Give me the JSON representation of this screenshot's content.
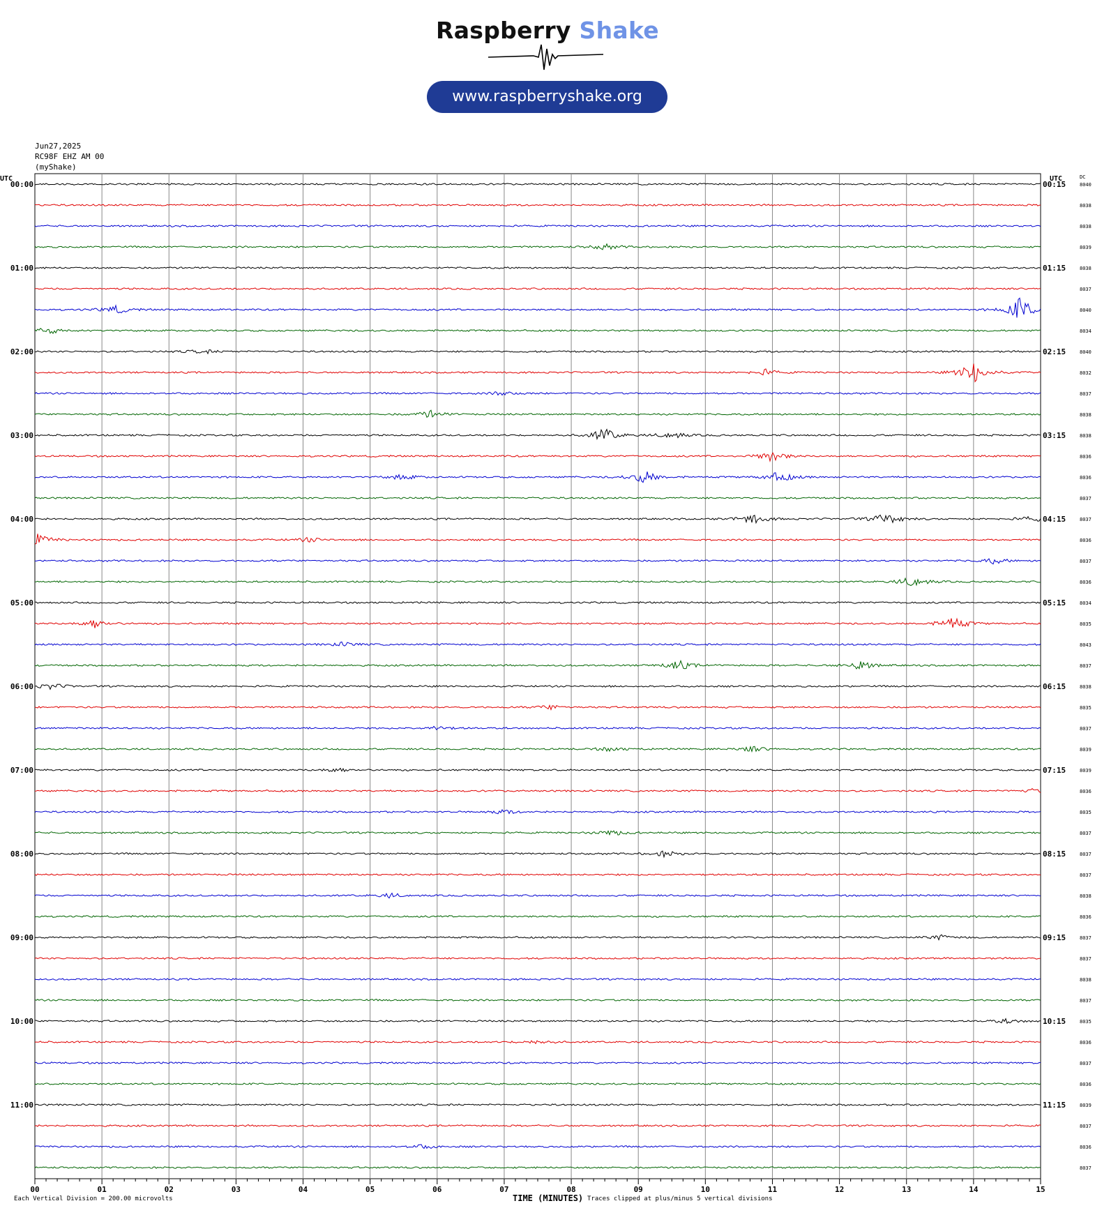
{
  "header": {
    "brand_word1": "Raspberry",
    "brand_word2": "Shake",
    "url": "www.raspberryshake.org"
  },
  "meta": {
    "date": "Jun27,2025",
    "station": "RC98F EHZ AM 00",
    "network": "(myShake)"
  },
  "footer": {
    "scale": "Each Vertical Division =  200.00 microvolts",
    "clip": "Traces clipped at plus/minus 5 vertical divisions"
  },
  "chart_data": {
    "type": "line",
    "title": "",
    "xlabel": "TIME (MINUTES)",
    "ylabel_left": "UTC",
    "ylabel_right": "UTC",
    "dc_label": "DC",
    "x_range": [
      0,
      15
    ],
    "x_ticks": [
      "00",
      "01",
      "02",
      "03",
      "04",
      "05",
      "06",
      "07",
      "08",
      "09",
      "10",
      "11",
      "12",
      "13",
      "14",
      "15"
    ],
    "grid": true,
    "trace_colors": [
      "#000000",
      "#e00000",
      "#0000d0",
      "#006400"
    ],
    "hour_labels_left": [
      "00:00",
      "01:00",
      "02:00",
      "03:00",
      "04:00",
      "05:00",
      "06:00",
      "07:00",
      "08:00",
      "09:00",
      "10:00",
      "11:00"
    ],
    "hour_labels_right": [
      "00:15",
      "01:15",
      "02:15",
      "03:15",
      "04:15",
      "05:15",
      "06:15",
      "07:15",
      "08:15",
      "09:15",
      "10:15",
      "11:15"
    ],
    "dc_values": [
      8040,
      8038,
      8038,
      8039,
      8038,
      8037,
      8040,
      8034,
      8040,
      8032,
      8037,
      8038,
      8038,
      8036,
      8036,
      8037,
      8037,
      8036,
      8037,
      8036,
      8034,
      8035,
      8043,
      8037,
      8038,
      8035,
      8037,
      8039,
      8039,
      8036,
      8035,
      8037,
      8037,
      8037,
      8038,
      8036,
      8037,
      8037,
      8038,
      8037,
      8035,
      8036,
      8037,
      8036,
      8039,
      8037,
      8036,
      8037
    ],
    "events": [
      {
        "trace": 3,
        "minute": 8.5,
        "amp": 4
      },
      {
        "trace": 6,
        "minute": 1.2,
        "amp": 6
      },
      {
        "trace": 6,
        "minute": 14.7,
        "amp": 18
      },
      {
        "trace": 7,
        "minute": 0.2,
        "amp": 5
      },
      {
        "trace": 8,
        "minute": 2.5,
        "amp": 3
      },
      {
        "trace": 9,
        "minute": 10.9,
        "amp": 4
      },
      {
        "trace": 9,
        "minute": 14.0,
        "amp": 16
      },
      {
        "trace": 10,
        "minute": 7.0,
        "amp": 3
      },
      {
        "trace": 11,
        "minute": 5.9,
        "amp": 5
      },
      {
        "trace": 12,
        "minute": 8.5,
        "amp": 10
      },
      {
        "trace": 12,
        "minute": 9.5,
        "amp": 5
      },
      {
        "trace": 13,
        "minute": 11.0,
        "amp": 8
      },
      {
        "trace": 14,
        "minute": 5.5,
        "amp": 4
      },
      {
        "trace": 14,
        "minute": 9.1,
        "amp": 9
      },
      {
        "trace": 14,
        "minute": 11.1,
        "amp": 8
      },
      {
        "trace": 16,
        "minute": 10.7,
        "amp": 8
      },
      {
        "trace": 16,
        "minute": 12.7,
        "amp": 9
      },
      {
        "trace": 16,
        "minute": 14.9,
        "amp": 4
      },
      {
        "trace": 17,
        "minute": 0.05,
        "amp": 8
      },
      {
        "trace": 17,
        "minute": 4.1,
        "amp": 3
      },
      {
        "trace": 18,
        "minute": 14.3,
        "amp": 4
      },
      {
        "trace": 19,
        "minute": 13.1,
        "amp": 8
      },
      {
        "trace": 21,
        "minute": 0.9,
        "amp": 6
      },
      {
        "trace": 21,
        "minute": 13.7,
        "amp": 10
      },
      {
        "trace": 22,
        "minute": 4.6,
        "amp": 3
      },
      {
        "trace": 23,
        "minute": 9.6,
        "amp": 7
      },
      {
        "trace": 23,
        "minute": 12.3,
        "amp": 7
      },
      {
        "trace": 24,
        "minute": 0.25,
        "amp": 4
      },
      {
        "trace": 25,
        "minute": 7.7,
        "amp": 3
      },
      {
        "trace": 26,
        "minute": 6.0,
        "amp": 3
      },
      {
        "trace": 27,
        "minute": 8.6,
        "amp": 3
      },
      {
        "trace": 27,
        "minute": 10.7,
        "amp": 4
      },
      {
        "trace": 28,
        "minute": 4.5,
        "amp": 3
      },
      {
        "trace": 29,
        "minute": 14.9,
        "amp": 3
      },
      {
        "trace": 30,
        "minute": 7.0,
        "amp": 3
      },
      {
        "trace": 31,
        "minute": 8.6,
        "amp": 4
      },
      {
        "trace": 32,
        "minute": 9.4,
        "amp": 4
      },
      {
        "trace": 34,
        "minute": 5.3,
        "amp": 3
      },
      {
        "trace": 36,
        "minute": 13.5,
        "amp": 3
      },
      {
        "trace": 40,
        "minute": 14.5,
        "amp": 3
      },
      {
        "trace": 41,
        "minute": 7.5,
        "amp": 3
      },
      {
        "trace": 46,
        "minute": 5.8,
        "amp": 3
      }
    ]
  }
}
